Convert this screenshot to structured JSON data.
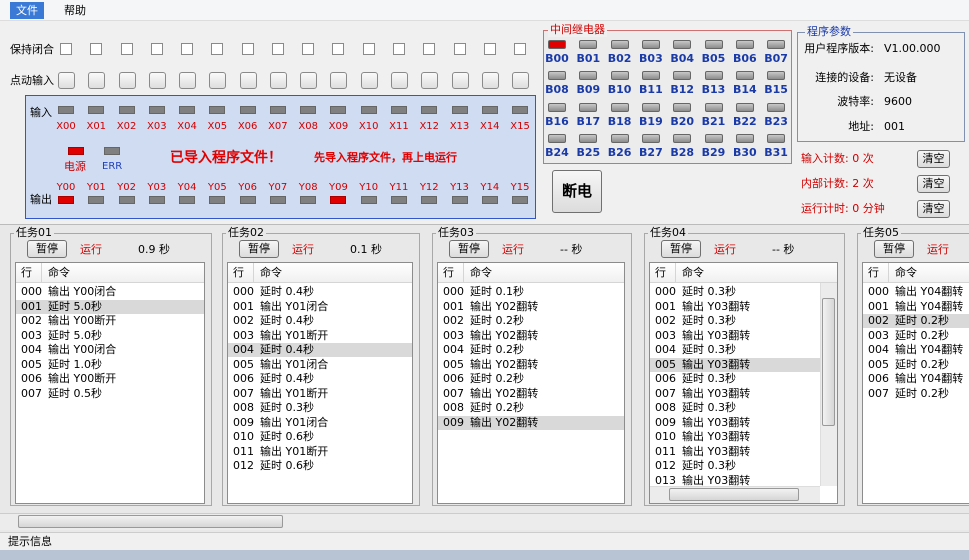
{
  "menu": [
    "文件",
    "帮助"
  ],
  "hold_label": "保持闭合",
  "jog_label": "点动输入",
  "io_panel": {
    "input_label": "输入",
    "output_label": "输出",
    "power_label": "电源",
    "err_label": "ERR",
    "status": "已导入程序文件！",
    "hint": "先导入程序文件，再上电运行",
    "inputs": [
      {
        "label": "X00",
        "on": false
      },
      {
        "label": "X01",
        "on": false
      },
      {
        "label": "X02",
        "on": false
      },
      {
        "label": "X03",
        "on": false
      },
      {
        "label": "X04",
        "on": false
      },
      {
        "label": "X05",
        "on": false
      },
      {
        "label": "X06",
        "on": false
      },
      {
        "label": "X07",
        "on": false
      },
      {
        "label": "X08",
        "on": false
      },
      {
        "label": "X09",
        "on": false
      },
      {
        "label": "X10",
        "on": false
      },
      {
        "label": "X11",
        "on": false
      },
      {
        "label": "X12",
        "on": false
      },
      {
        "label": "X13",
        "on": false
      },
      {
        "label": "X14",
        "on": false
      },
      {
        "label": "X15",
        "on": false
      }
    ],
    "outputs": [
      {
        "label": "Y00",
        "on": true
      },
      {
        "label": "Y01",
        "on": false
      },
      {
        "label": "Y02",
        "on": false
      },
      {
        "label": "Y03",
        "on": false
      },
      {
        "label": "Y04",
        "on": false
      },
      {
        "label": "Y05",
        "on": false
      },
      {
        "label": "Y06",
        "on": false
      },
      {
        "label": "Y07",
        "on": false
      },
      {
        "label": "Y08",
        "on": false
      },
      {
        "label": "Y09",
        "on": true
      },
      {
        "label": "Y10",
        "on": false
      },
      {
        "label": "Y11",
        "on": false
      },
      {
        "label": "Y12",
        "on": false
      },
      {
        "label": "Y13",
        "on": false
      },
      {
        "label": "Y14",
        "on": false
      },
      {
        "label": "Y15",
        "on": false
      }
    ]
  },
  "relays": {
    "title": "中间继电器",
    "items": [
      {
        "label": "B00",
        "on": true
      },
      {
        "label": "B01",
        "on": false
      },
      {
        "label": "B02",
        "on": false
      },
      {
        "label": "B03",
        "on": false
      },
      {
        "label": "B04",
        "on": false
      },
      {
        "label": "B05",
        "on": false
      },
      {
        "label": "B06",
        "on": false
      },
      {
        "label": "B07",
        "on": false
      },
      {
        "label": "B08",
        "on": false
      },
      {
        "label": "B09",
        "on": false
      },
      {
        "label": "B10",
        "on": false
      },
      {
        "label": "B11",
        "on": false
      },
      {
        "label": "B12",
        "on": false
      },
      {
        "label": "B13",
        "on": false
      },
      {
        "label": "B14",
        "on": false
      },
      {
        "label": "B15",
        "on": false
      },
      {
        "label": "B16",
        "on": false
      },
      {
        "label": "B17",
        "on": false
      },
      {
        "label": "B18",
        "on": false
      },
      {
        "label": "B19",
        "on": false
      },
      {
        "label": "B20",
        "on": false
      },
      {
        "label": "B21",
        "on": false
      },
      {
        "label": "B22",
        "on": false
      },
      {
        "label": "B23",
        "on": false
      },
      {
        "label": "B24",
        "on": false
      },
      {
        "label": "B25",
        "on": false
      },
      {
        "label": "B26",
        "on": false
      },
      {
        "label": "B27",
        "on": false
      },
      {
        "label": "B28",
        "on": false
      },
      {
        "label": "B29",
        "on": false
      },
      {
        "label": "B30",
        "on": false
      },
      {
        "label": "B31",
        "on": false
      }
    ]
  },
  "power_button": "断电",
  "params": {
    "title": "程序参数",
    "rows": [
      {
        "label": "用户程序版本:",
        "value": "V1.00.000"
      },
      {
        "label": "连接的设备:",
        "value": "无设备"
      },
      {
        "label": "波特率:",
        "value": "9600"
      },
      {
        "label": "地址:",
        "value": "001"
      }
    ]
  },
  "counters": [
    {
      "text": "输入计数: 0 次",
      "button": "清空"
    },
    {
      "text": "内部计数: 2 次",
      "button": "清空"
    },
    {
      "text": "运行计时: 0 分钟",
      "button": "清空"
    }
  ],
  "tasks": [
    {
      "title": "任务01",
      "button": "暂停",
      "state": "运行",
      "time": "0.9 秒",
      "header": [
        "行",
        "命令"
      ],
      "selected": 1,
      "rows": [
        [
          "000",
          "输出 Y00闭合"
        ],
        [
          "001",
          "延时 5.0秒"
        ],
        [
          "002",
          "输出 Y00断开"
        ],
        [
          "003",
          "延时 5.0秒"
        ],
        [
          "004",
          "输出 Y00闭合"
        ],
        [
          "005",
          "延时 1.0秒"
        ],
        [
          "006",
          "输出 Y00断开"
        ],
        [
          "007",
          "延时 0.5秒"
        ]
      ]
    },
    {
      "title": "任务02",
      "button": "暂停",
      "state": "运行",
      "time": "0.1 秒",
      "header": [
        "行",
        "命令"
      ],
      "selected": 4,
      "rows": [
        [
          "000",
          "延时 0.4秒"
        ],
        [
          "001",
          "输出 Y01闭合"
        ],
        [
          "002",
          "延时 0.4秒"
        ],
        [
          "003",
          "输出 Y01断开"
        ],
        [
          "004",
          "延时 0.4秒"
        ],
        [
          "005",
          "输出 Y01闭合"
        ],
        [
          "006",
          "延时 0.4秒"
        ],
        [
          "007",
          "输出 Y01断开"
        ],
        [
          "008",
          "延时 0.3秒"
        ],
        [
          "009",
          "输出 Y01闭合"
        ],
        [
          "010",
          "延时 0.6秒"
        ],
        [
          "011",
          "输出 Y01断开"
        ],
        [
          "012",
          "延时 0.6秒"
        ]
      ]
    },
    {
      "title": "任务03",
      "button": "暂停",
      "state": "运行",
      "time": "-- 秒",
      "header": [
        "行",
        "命令"
      ],
      "selected": 9,
      "rows": [
        [
          "000",
          "延时 0.1秒"
        ],
        [
          "001",
          "输出 Y02翻转"
        ],
        [
          "002",
          "延时 0.2秒"
        ],
        [
          "003",
          "输出 Y02翻转"
        ],
        [
          "004",
          "延时 0.2秒"
        ],
        [
          "005",
          "输出 Y02翻转"
        ],
        [
          "006",
          "延时 0.2秒"
        ],
        [
          "007",
          "输出 Y02翻转"
        ],
        [
          "008",
          "延时 0.2秒"
        ],
        [
          "009",
          "输出 Y02翻转"
        ]
      ]
    },
    {
      "title": "任务04",
      "button": "暂停",
      "state": "运行",
      "time": "-- 秒",
      "header": [
        "行",
        "命令"
      ],
      "selected": 5,
      "scrollbar": true,
      "rows": [
        [
          "000",
          "延时 0.3秒"
        ],
        [
          "001",
          "输出 Y03翻转"
        ],
        [
          "002",
          "延时 0.3秒"
        ],
        [
          "003",
          "输出 Y03翻转"
        ],
        [
          "004",
          "延时 0.3秒"
        ],
        [
          "005",
          "输出 Y03翻转"
        ],
        [
          "006",
          "延时 0.3秒"
        ],
        [
          "007",
          "输出 Y03翻转"
        ],
        [
          "008",
          "延时 0.3秒"
        ],
        [
          "009",
          "输出 Y03翻转"
        ],
        [
          "010",
          "输出 Y03翻转"
        ],
        [
          "011",
          "输出 Y03翻转"
        ],
        [
          "012",
          "延时 0.3秒"
        ],
        [
          "013",
          "输出 Y03翻转"
        ]
      ]
    },
    {
      "title": "任务05",
      "button": "暂停",
      "state": "运行",
      "header": [
        "行",
        "命令"
      ],
      "selected": 2,
      "rows": [
        [
          "000",
          "输出 Y04翻转"
        ],
        [
          "001",
          "输出 Y04翻转"
        ],
        [
          "002",
          "延时 0.2秒"
        ],
        [
          "003",
          "延时 0.2秒"
        ],
        [
          "004",
          "输出 Y04翻转"
        ],
        [
          "005",
          "延时 0.2秒"
        ],
        [
          "006",
          "输出 Y04翻转"
        ],
        [
          "007",
          "延时 0.2秒"
        ]
      ]
    }
  ],
  "status_bar": "提示信息"
}
